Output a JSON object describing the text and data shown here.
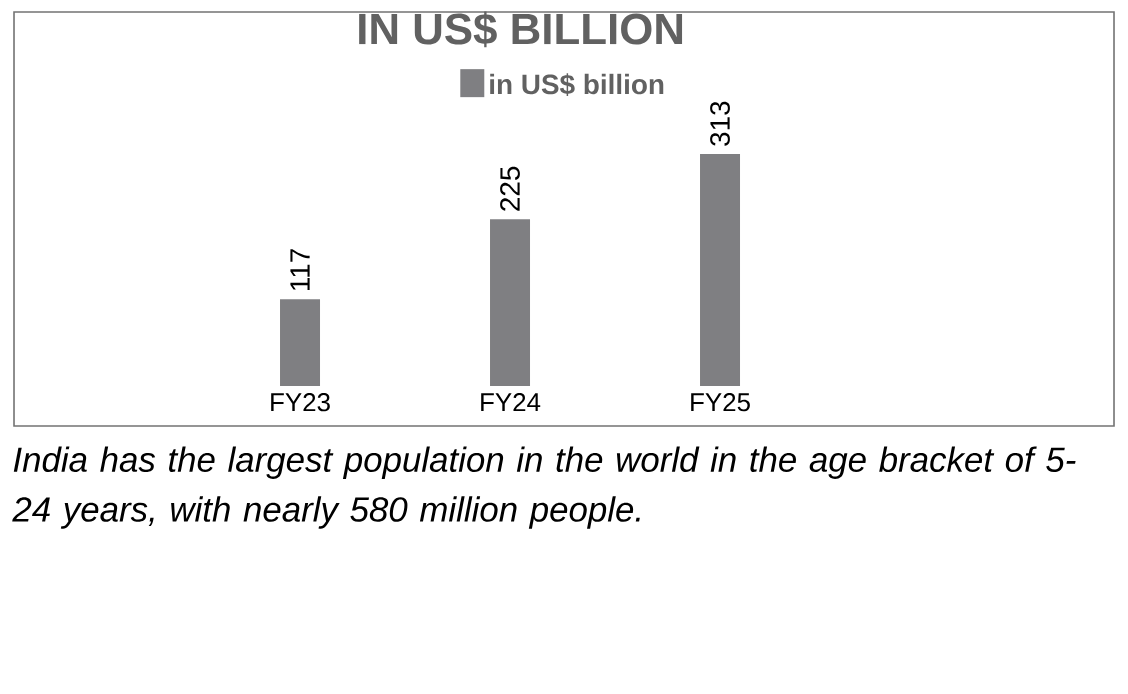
{
  "chart_data": {
    "type": "bar",
    "title": "IN US$ BILLION",
    "categories": [
      "FY23",
      "FY24",
      "FY25"
    ],
    "series": [
      {
        "name": "in US$ billion",
        "color": "#7f7f82",
        "values": [
          117,
          225,
          313
        ]
      }
    ],
    "data_labels": true,
    "legend": "top",
    "tick_labels": "x",
    "annotations": [
      "India has the largest population in the world in the age bracket of 5-24 years, with nearly 580 million people."
    ]
  }
}
